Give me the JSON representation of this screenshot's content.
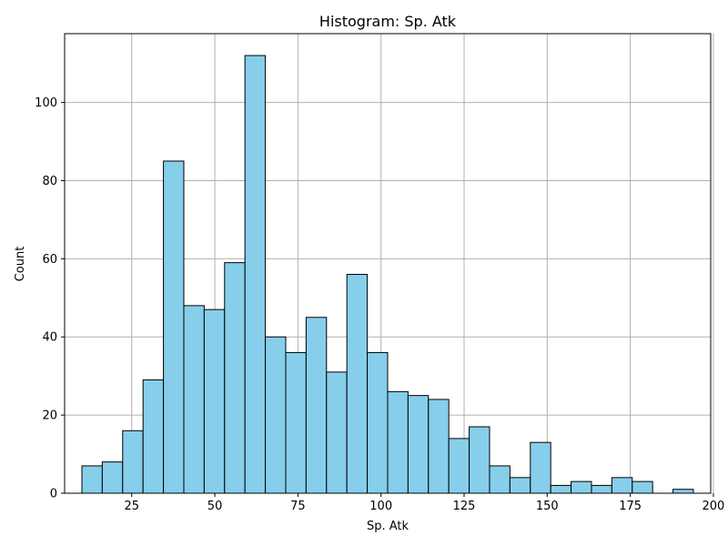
{
  "chart_data": {
    "type": "bar",
    "title": "Histogram: Sp. Atk",
    "xlabel": "Sp. Atk",
    "ylabel": "Count",
    "bin_start": 10,
    "bin_width": 6.133,
    "counts": [
      7,
      8,
      16,
      29,
      85,
      48,
      47,
      59,
      112,
      40,
      36,
      45,
      31,
      56,
      36,
      26,
      25,
      24,
      14,
      17,
      7,
      4,
      13,
      2,
      3,
      2,
      4,
      3,
      0,
      1
    ],
    "xlim": [
      4.8,
      199.2
    ],
    "ylim": [
      0,
      117.6
    ],
    "x_ticks": [
      25,
      50,
      75,
      100,
      125,
      150,
      175,
      200
    ],
    "y_ticks": [
      0,
      20,
      40,
      60,
      80,
      100
    ],
    "grid": true,
    "bar_color": "#87ceeb",
    "edge_color": "#000000",
    "grid_color": "#b0b0b0"
  }
}
